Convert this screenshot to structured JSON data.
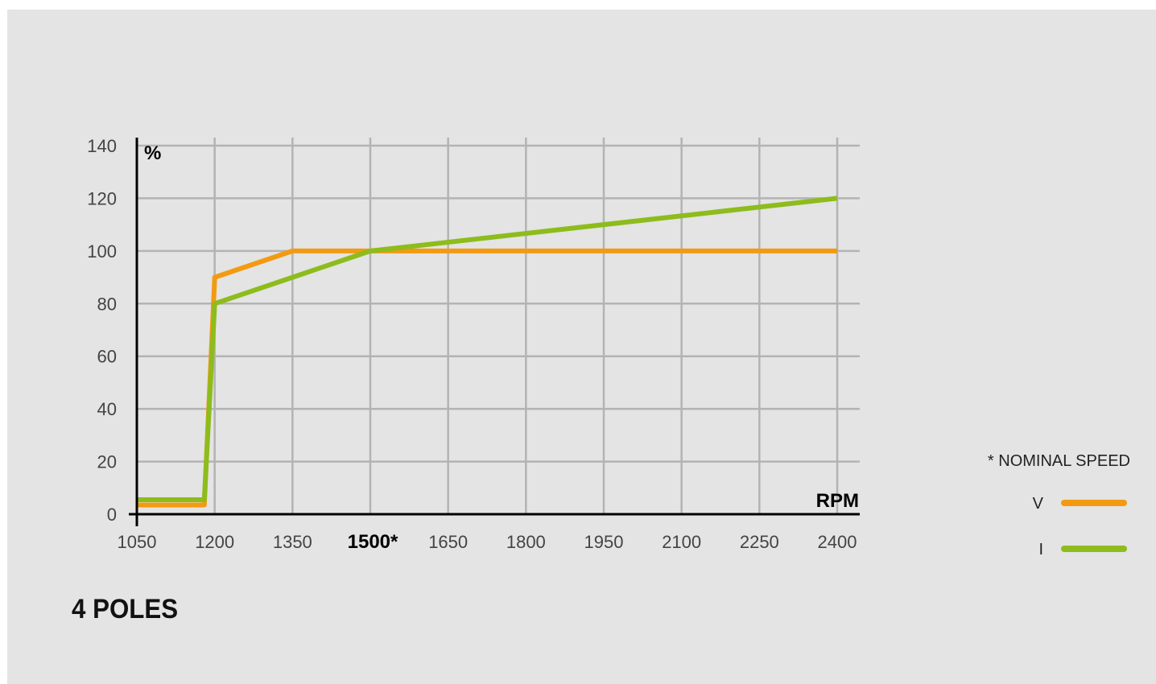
{
  "caption": "4 POLES",
  "note": "* NOMINAL SPEED",
  "colors": {
    "background": "#e3e4e3",
    "grid": "#b3b3b3",
    "axis": "#000000",
    "V": "#f39a12",
    "I": "#8dbc1c"
  },
  "chart_data": {
    "type": "line",
    "title": "",
    "xlabel": "RPM",
    "ylabel": "%",
    "xlim": [
      1050,
      2400
    ],
    "ylim": [
      0,
      140
    ],
    "x_ticks": [
      1050,
      1200,
      1350,
      1500,
      1650,
      1800,
      1950,
      2100,
      2250,
      2400
    ],
    "x_tick_labels": [
      "1050",
      "1200",
      "1350",
      "1500*",
      "1650",
      "1800",
      "1950",
      "2100",
      "2250",
      "2400"
    ],
    "highlighted_tick_label": "1500*",
    "y_ticks": [
      0,
      20,
      40,
      60,
      80,
      100,
      120,
      140
    ],
    "y_tick_labels": [
      "0",
      "20",
      "40",
      "60",
      "80",
      "100",
      "120",
      "140"
    ],
    "grid": true,
    "legend_position": "right",
    "series": [
      {
        "name": "V",
        "color": "#f39a12",
        "x": [
          1050,
          1180,
          1200,
          1350,
          1500,
          2400
        ],
        "y": [
          3.5,
          3.5,
          90,
          100,
          100,
          100
        ]
      },
      {
        "name": "I",
        "color": "#8dbc1c",
        "x": [
          1050,
          1180,
          1200,
          1500,
          2400
        ],
        "y": [
          5.5,
          5.5,
          80,
          100,
          120
        ]
      }
    ]
  }
}
